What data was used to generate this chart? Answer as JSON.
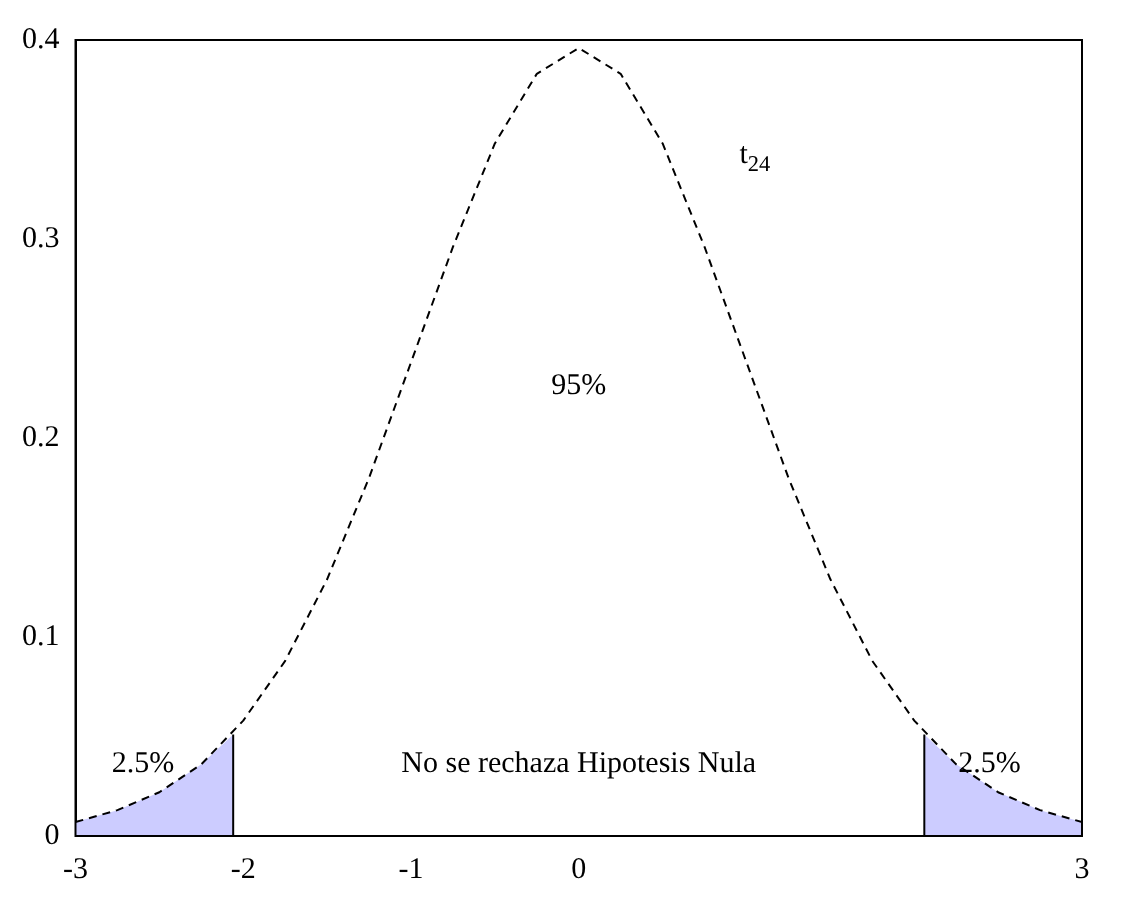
{
  "chart_data": {
    "type": "line",
    "xlim": [
      -3,
      3
    ],
    "ylim": [
      0,
      0.4
    ],
    "xticks": [
      -3,
      -2,
      -1,
      0,
      3
    ],
    "yticks": [
      0,
      0.1,
      0.2,
      0.3,
      0.4
    ],
    "grid": false,
    "legend": false,
    "marker": "none",
    "series": [
      {
        "type": "line",
        "color": "#000000",
        "line_style": "dashed",
        "x": [
          -3,
          -2.75,
          -2.5,
          -2.25,
          -2,
          -1.75,
          -1.5,
          -1.25,
          -1,
          -0.75,
          -0.5,
          -0.25,
          0,
          0.25,
          0.5,
          0.75,
          1,
          1.25,
          1.5,
          1.75,
          2,
          2.25,
          2.5,
          2.75,
          3
        ],
        "values": [
          0.007,
          0.013,
          0.022,
          0.036,
          0.058,
          0.088,
          0.129,
          0.18,
          0.238,
          0.296,
          0.348,
          0.383,
          0.396,
          0.383,
          0.348,
          0.296,
          0.238,
          0.18,
          0.129,
          0.088,
          0.058,
          0.036,
          0.022,
          0.013,
          0.007
        ]
      },
      {
        "type": "area",
        "color": "#ccccff",
        "x": [
          -3,
          -2.75,
          -2.5,
          -2.25,
          -2.06
        ],
        "values": [
          0.007,
          0.013,
          0.022,
          0.036,
          0.051
        ]
      },
      {
        "type": "area",
        "color": "#ccccff",
        "x": [
          2.06,
          2.25,
          2.5,
          2.75,
          3
        ],
        "values": [
          0.051,
          0.036,
          0.022,
          0.013,
          0.007
        ]
      },
      {
        "type": "line",
        "color": "#000000",
        "line_style": "solid",
        "x": [
          -2.06,
          -2.06
        ],
        "values": [
          0,
          0.051
        ]
      },
      {
        "type": "line",
        "color": "#000000",
        "line_style": "solid",
        "x": [
          2.06,
          2.06
        ],
        "values": [
          0,
          0.051
        ]
      }
    ],
    "annotations": [
      "t$_{24}$",
      "95%",
      "No se rechaza Hipotesis Nula",
      "2.5%",
      "2.5%"
    ]
  }
}
